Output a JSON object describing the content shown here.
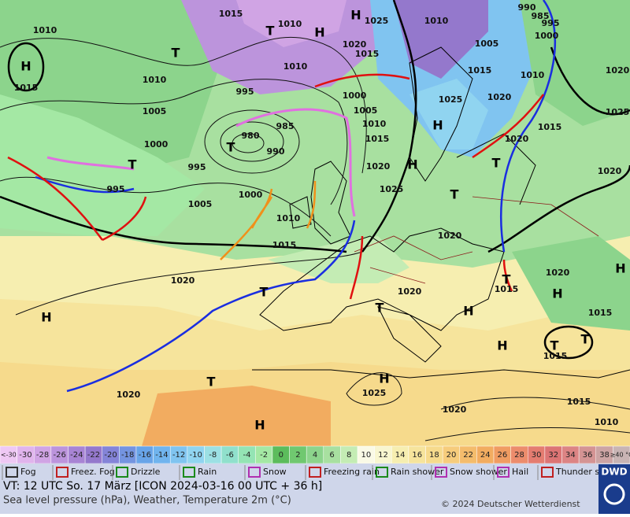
{
  "map": {
    "pressure_labels": [
      1015,
      1010,
      1015,
      1010,
      1010,
      1005,
      1000,
      995,
      985,
      980,
      990,
      995,
      995,
      1005,
      1000,
      1010,
      1015,
      1020,
      1025,
      1010,
      1020,
      1015,
      1010,
      1000,
      1005,
      1010,
      1015,
      1020,
      1025,
      1025,
      1005,
      1015,
      1020,
      1010,
      1015,
      1020,
      1020,
      1020,
      1020,
      1015,
      1020,
      1015,
      1015,
      1025,
      1015,
      1020,
      1010,
      1020,
      990,
      985,
      995,
      1000,
      1020,
      1025
    ],
    "systems": [
      "H",
      "T",
      "T",
      "H",
      "H",
      "T",
      "T",
      "H",
      "H",
      "T",
      "T",
      "H",
      "T",
      "T",
      "H",
      "H",
      "T",
      "H",
      "H",
      "T",
      "H",
      "T",
      "T",
      "H"
    ]
  },
  "temperature_scale": {
    "labels": [
      "<-30",
      -30,
      -28,
      -26,
      -24,
      -22,
      -20,
      -18,
      -16,
      -14,
      -12,
      -10,
      -8,
      -6,
      -4,
      -2,
      0,
      2,
      4,
      6,
      8,
      10,
      12,
      14,
      16,
      18,
      20,
      22,
      24,
      26,
      28,
      30,
      32,
      34,
      36,
      38,
      "≥40 °C"
    ],
    "colors": [
      "#eec8f4",
      "#e0b4ec",
      "#d0a4e4",
      "#bc94dc",
      "#a884d4",
      "#9478cc",
      "#8484d8",
      "#7494e0",
      "#68a4e8",
      "#70b4ee",
      "#80c4f0",
      "#90d4f0",
      "#9ce0e4",
      "#90e0cc",
      "#94e4b4",
      "#a4e8a4",
      "#5cbc5c",
      "#70c870",
      "#8cd48c",
      "#a8e0a0",
      "#c4ecb4",
      "#fafae6",
      "#f8f6d0",
      "#f6eeb0",
      "#f6e49c",
      "#f6da8c",
      "#f6cc7c",
      "#f4bc6c",
      "#f2ac60",
      "#f09c62",
      "#ec8c6c",
      "#e47c70",
      "#dc7474",
      "#dc8484",
      "#d49494",
      "#cca4a4",
      "#c8b4b4"
    ]
  },
  "weather_legend": [
    "Fog",
    "Freez. Fog",
    "Drizzle",
    "Rain",
    "Snow",
    "Freezing rain",
    "Rain shower",
    "Snow shower",
    "Hail",
    "Thunder storm"
  ],
  "footer": {
    "valid_time": "VT: 12 UTC So.  17 März [ICON 2024-03-16  00 UTC + 36 h]",
    "description": "Sea level pressure (hPa), Weather, Temperature 2m (°C)",
    "copyright": "© 2024 Deutscher Wetterdienst",
    "logo": "DWD"
  }
}
